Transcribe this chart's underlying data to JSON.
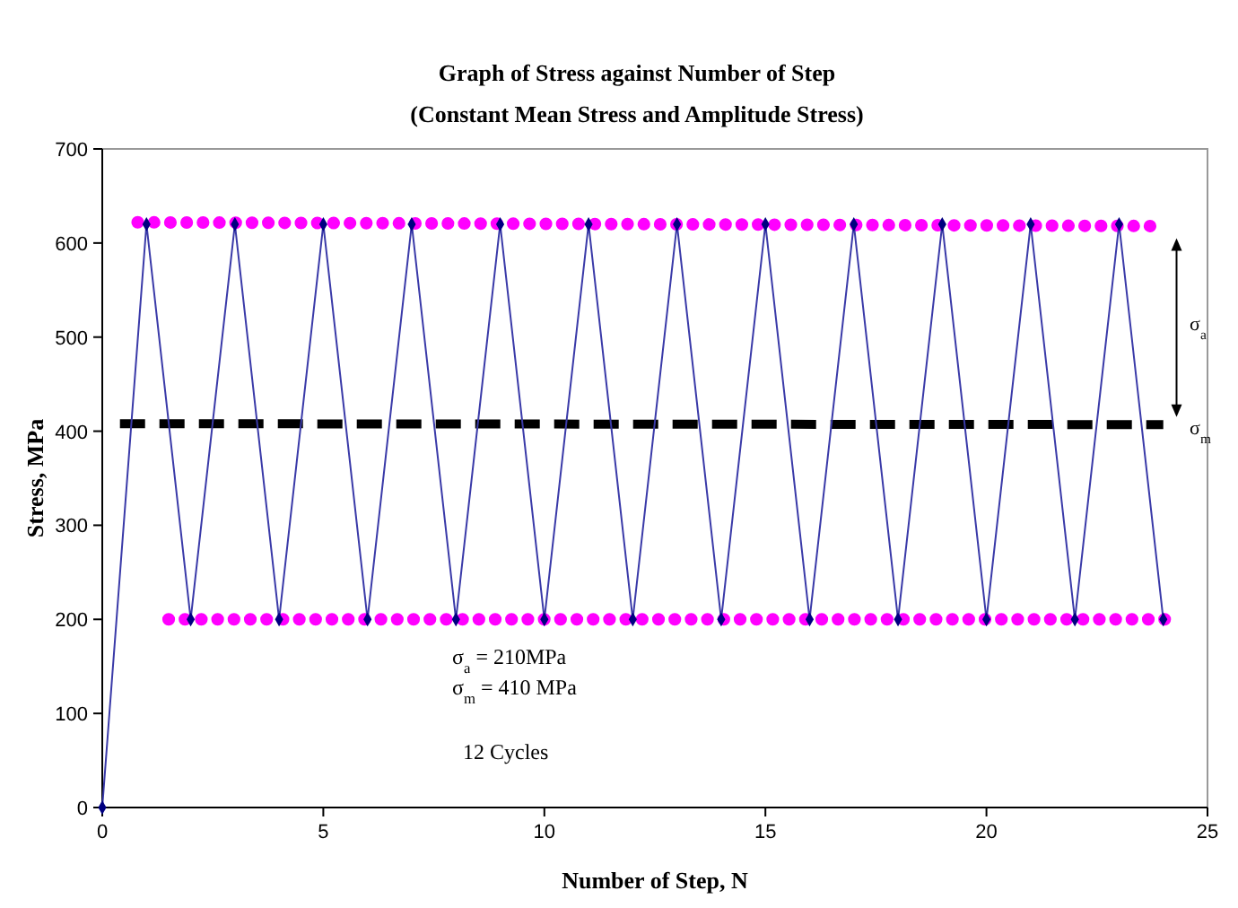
{
  "chart_data": {
    "type": "line",
    "title": "Graph of Stress against Number of Step",
    "subtitle": "(Constant Mean Stress and Amplitude Stress)",
    "xlabel": "Number of Step, N",
    "ylabel": "Stress, MPa",
    "xlim": [
      0,
      25
    ],
    "xticks": [
      0,
      5,
      10,
      15,
      20,
      25
    ],
    "ylim": [
      0,
      700
    ],
    "yticks": [
      0,
      100,
      200,
      300,
      400,
      500,
      600,
      700
    ],
    "grid": false,
    "series": [
      {
        "color": "#ff00ff",
        "line_style": "dotted",
        "marker": "none",
        "x": [
          0.8,
          24
        ],
        "values": [
          622,
          618
        ]
      },
      {
        "color": "#ff00ff",
        "line_style": "dotted",
        "marker": "none",
        "x": [
          1.5,
          24.3
        ],
        "values": [
          200,
          200
        ]
      },
      {
        "color": "#000000",
        "line_style": "dashed",
        "marker": "none",
        "x": [
          0.4,
          24
        ],
        "values": [
          408,
          407
        ]
      },
      {
        "color": "#3a3aa8",
        "line_style": "solid",
        "marker": "diamond",
        "x": [
          0,
          1,
          2,
          3,
          4,
          5,
          6,
          7,
          8,
          9,
          10,
          11,
          12,
          13,
          14,
          15,
          16,
          17,
          18,
          19,
          20,
          21,
          22,
          23,
          24
        ],
        "values": [
          0,
          620,
          200,
          620,
          200,
          620,
          200,
          620,
          200,
          620,
          200,
          620,
          200,
          620,
          200,
          620,
          200,
          620,
          200,
          620,
          200,
          620,
          200,
          620,
          200
        ]
      }
    ],
    "annotations": [
      "σ$_{a}$",
      "σ$_{m}$",
      "σ$_{a}$ = 210MPa",
      "σ$_{m}$ = 410 MPa",
      "12 Cycles"
    ]
  }
}
